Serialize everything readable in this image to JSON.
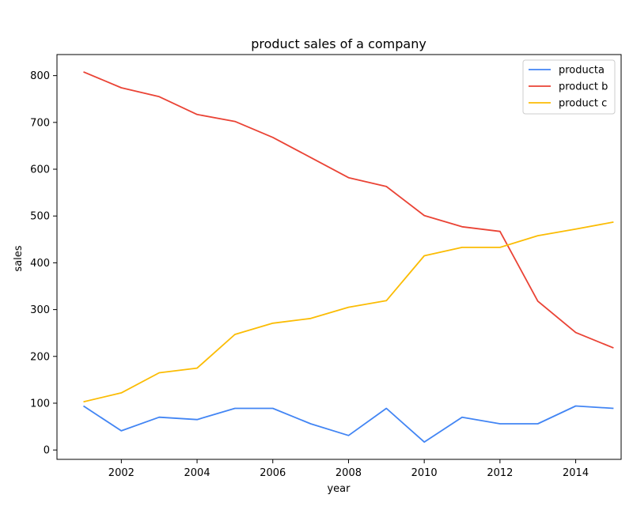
{
  "chart_data": {
    "type": "line",
    "title": "product sales of a company",
    "xlabel": "year",
    "ylabel": "sales",
    "xlim": [
      2000.3,
      2015.2
    ],
    "ylim": [
      -20,
      845
    ],
    "xticks": [
      2002,
      2004,
      2006,
      2008,
      2010,
      2012,
      2014
    ],
    "yticks": [
      0,
      100,
      200,
      300,
      400,
      500,
      600,
      700,
      800
    ],
    "grid": false,
    "legend_position": "top-right",
    "x": [
      2001,
      2002,
      2003,
      2004,
      2005,
      2006,
      2007,
      2008,
      2009,
      2010,
      2011,
      2012,
      2013,
      2014,
      2015
    ],
    "series": [
      {
        "name": "producta",
        "color": "#4285f4",
        "values": [
          94,
          41,
          70,
          65,
          89,
          89,
          56,
          31,
          89,
          17,
          70,
          56,
          56,
          94,
          89
        ]
      },
      {
        "name": "product b",
        "color": "#ea4335",
        "values": [
          808,
          774,
          755,
          717,
          702,
          668,
          625,
          582,
          563,
          501,
          477,
          467,
          318,
          251,
          218
        ]
      },
      {
        "name": "product c",
        "color": "#fbbc04",
        "values": [
          103,
          122,
          165,
          175,
          247,
          271,
          281,
          305,
          319,
          415,
          433,
          433,
          458,
          472,
          487
        ]
      }
    ]
  }
}
